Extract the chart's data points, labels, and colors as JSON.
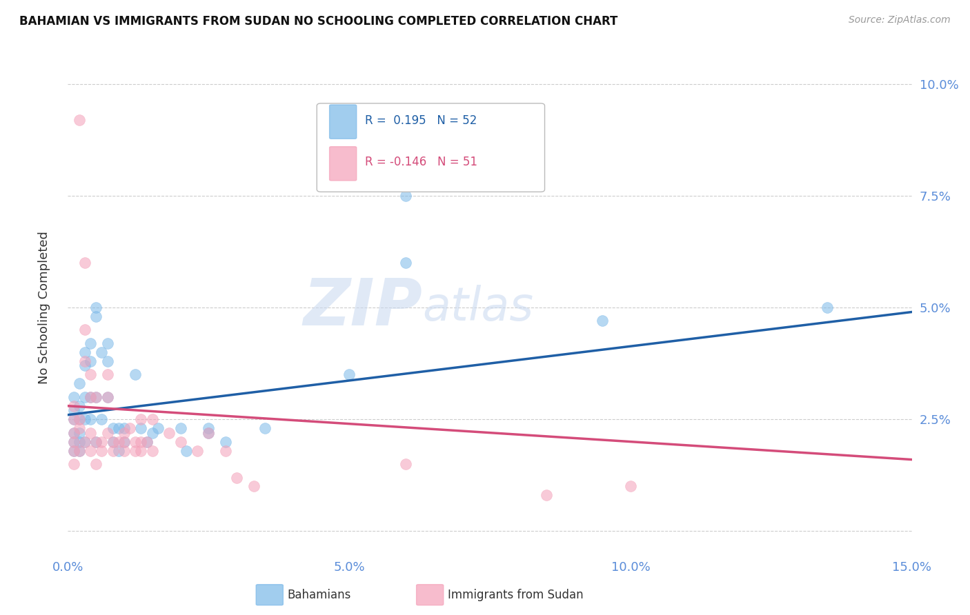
{
  "title": "BAHAMIAN VS IMMIGRANTS FROM SUDAN NO SCHOOLING COMPLETED CORRELATION CHART",
  "source": "Source: ZipAtlas.com",
  "ylabel": "No Schooling Completed",
  "xlim": [
    0.0,
    0.15
  ],
  "ylim": [
    -0.005,
    0.105
  ],
  "x_ticks": [
    0.0,
    0.05,
    0.1,
    0.15
  ],
  "y_ticks": [
    0.0,
    0.025,
    0.05,
    0.075,
    0.1
  ],
  "x_tick_labels": [
    "0.0%",
    "5.0%",
    "10.0%",
    "15.0%"
  ],
  "y_tick_labels": [
    "",
    "2.5%",
    "5.0%",
    "7.5%",
    "10.0%"
  ],
  "bahamian_color": "#7ab8e8",
  "sudan_color": "#f4a0b8",
  "blue_line_color": "#1f5fa6",
  "pink_line_color": "#d44c7a",
  "tick_color": "#5b8dd9",
  "legend_r1": "R =  0.195   N = 52",
  "legend_r2": "R = -0.146   N = 51",
  "legend_label1": "Bahamians",
  "legend_label2": "Immigrants from Sudan",
  "watermark_zip": "ZIP",
  "watermark_atlas": "atlas",
  "scatter_blue": [
    [
      0.001,
      0.025
    ],
    [
      0.001,
      0.022
    ],
    [
      0.001,
      0.02
    ],
    [
      0.001,
      0.018
    ],
    [
      0.001,
      0.027
    ],
    [
      0.001,
      0.03
    ],
    [
      0.002,
      0.025
    ],
    [
      0.002,
      0.022
    ],
    [
      0.002,
      0.028
    ],
    [
      0.002,
      0.033
    ],
    [
      0.002,
      0.02
    ],
    [
      0.002,
      0.018
    ],
    [
      0.003,
      0.03
    ],
    [
      0.003,
      0.025
    ],
    [
      0.003,
      0.04
    ],
    [
      0.003,
      0.037
    ],
    [
      0.003,
      0.02
    ],
    [
      0.004,
      0.038
    ],
    [
      0.004,
      0.042
    ],
    [
      0.004,
      0.03
    ],
    [
      0.004,
      0.025
    ],
    [
      0.005,
      0.05
    ],
    [
      0.005,
      0.048
    ],
    [
      0.005,
      0.02
    ],
    [
      0.005,
      0.03
    ],
    [
      0.006,
      0.025
    ],
    [
      0.006,
      0.04
    ],
    [
      0.007,
      0.038
    ],
    [
      0.007,
      0.042
    ],
    [
      0.007,
      0.03
    ],
    [
      0.008,
      0.02
    ],
    [
      0.008,
      0.023
    ],
    [
      0.009,
      0.023
    ],
    [
      0.009,
      0.018
    ],
    [
      0.01,
      0.023
    ],
    [
      0.01,
      0.02
    ],
    [
      0.012,
      0.035
    ],
    [
      0.013,
      0.023
    ],
    [
      0.014,
      0.02
    ],
    [
      0.015,
      0.022
    ],
    [
      0.016,
      0.023
    ],
    [
      0.02,
      0.023
    ],
    [
      0.021,
      0.018
    ],
    [
      0.025,
      0.022
    ],
    [
      0.025,
      0.023
    ],
    [
      0.028,
      0.02
    ],
    [
      0.035,
      0.023
    ],
    [
      0.05,
      0.035
    ],
    [
      0.06,
      0.06
    ],
    [
      0.06,
      0.075
    ],
    [
      0.095,
      0.047
    ],
    [
      0.135,
      0.05
    ]
  ],
  "scatter_pink": [
    [
      0.001,
      0.022
    ],
    [
      0.001,
      0.025
    ],
    [
      0.001,
      0.028
    ],
    [
      0.001,
      0.02
    ],
    [
      0.001,
      0.018
    ],
    [
      0.001,
      0.015
    ],
    [
      0.002,
      0.023
    ],
    [
      0.002,
      0.025
    ],
    [
      0.002,
      0.092
    ],
    [
      0.002,
      0.018
    ],
    [
      0.003,
      0.02
    ],
    [
      0.003,
      0.06
    ],
    [
      0.003,
      0.045
    ],
    [
      0.003,
      0.038
    ],
    [
      0.004,
      0.035
    ],
    [
      0.004,
      0.03
    ],
    [
      0.004,
      0.022
    ],
    [
      0.004,
      0.018
    ],
    [
      0.005,
      0.03
    ],
    [
      0.005,
      0.02
    ],
    [
      0.005,
      0.015
    ],
    [
      0.006,
      0.02
    ],
    [
      0.006,
      0.018
    ],
    [
      0.007,
      0.035
    ],
    [
      0.007,
      0.03
    ],
    [
      0.007,
      0.022
    ],
    [
      0.008,
      0.02
    ],
    [
      0.008,
      0.018
    ],
    [
      0.009,
      0.02
    ],
    [
      0.01,
      0.022
    ],
    [
      0.01,
      0.02
    ],
    [
      0.01,
      0.018
    ],
    [
      0.011,
      0.023
    ],
    [
      0.012,
      0.02
    ],
    [
      0.012,
      0.018
    ],
    [
      0.013,
      0.025
    ],
    [
      0.013,
      0.02
    ],
    [
      0.013,
      0.018
    ],
    [
      0.014,
      0.02
    ],
    [
      0.015,
      0.025
    ],
    [
      0.015,
      0.018
    ],
    [
      0.018,
      0.022
    ],
    [
      0.02,
      0.02
    ],
    [
      0.023,
      0.018
    ],
    [
      0.025,
      0.022
    ],
    [
      0.028,
      0.018
    ],
    [
      0.03,
      0.012
    ],
    [
      0.033,
      0.01
    ],
    [
      0.06,
      0.015
    ],
    [
      0.085,
      0.008
    ],
    [
      0.1,
      0.01
    ]
  ],
  "blue_trendline_x": [
    0.0,
    0.15
  ],
  "blue_trendline_y": [
    0.026,
    0.049
  ],
  "pink_trendline_x": [
    0.0,
    0.15
  ],
  "pink_trendline_y": [
    0.028,
    0.016
  ]
}
